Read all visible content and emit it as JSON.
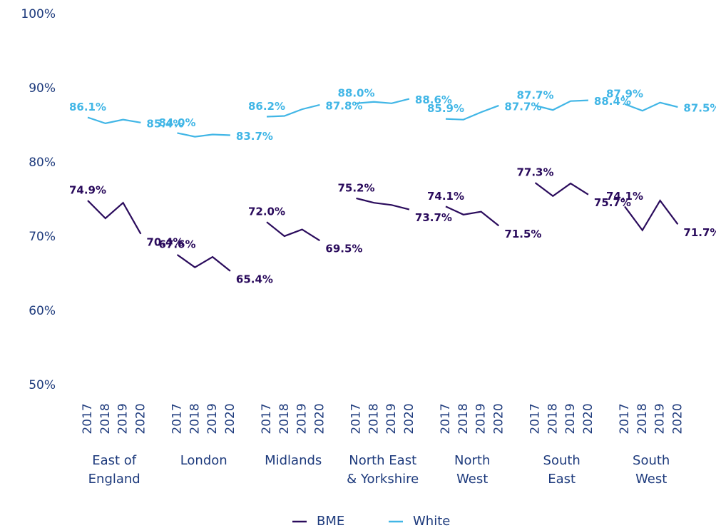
{
  "chart_data": {
    "type": "line",
    "groups": [
      {
        "label": [
          "East of",
          "England"
        ],
        "categories": [
          "2017",
          "2018",
          "2019",
          "2020"
        ]
      },
      {
        "label": [
          "London"
        ],
        "categories": [
          "2017",
          "2018",
          "2019",
          "2020"
        ]
      },
      {
        "label": [
          "Midlands"
        ],
        "categories": [
          "2017",
          "2018",
          "2019",
          "2020"
        ]
      },
      {
        "label": [
          "North East",
          "& Yorkshire"
        ],
        "categories": [
          "2017",
          "2018",
          "2019",
          "2020"
        ]
      },
      {
        "label": [
          "North",
          "West"
        ],
        "categories": [
          "2017",
          "2018",
          "2019",
          "2020"
        ]
      },
      {
        "label": [
          "South",
          "East"
        ],
        "categories": [
          "2017",
          "2018",
          "2019",
          "2020"
        ]
      },
      {
        "label": [
          "South",
          "West"
        ],
        "categories": [
          "2017",
          "2018",
          "2019",
          "2020"
        ]
      }
    ],
    "series": [
      {
        "name": "BME",
        "color": "#2a0b5c",
        "values": [
          [
            74.9,
            72.5,
            74.6,
            70.4
          ],
          [
            67.6,
            65.9,
            67.3,
            65.4
          ],
          [
            72.0,
            70.1,
            71.0,
            69.5
          ],
          [
            75.2,
            74.6,
            74.3,
            73.7
          ],
          [
            74.1,
            73.0,
            73.4,
            71.5
          ],
          [
            77.3,
            75.5,
            77.2,
            75.7
          ],
          [
            74.1,
            70.9,
            74.9,
            71.7
          ]
        ],
        "value_labels": [
          [
            "74.9%",
            null,
            null,
            "70.4%"
          ],
          [
            "67.6%",
            null,
            null,
            "65.4%"
          ],
          [
            "72.0%",
            null,
            null,
            "69.5%"
          ],
          [
            "75.2%",
            null,
            null,
            "73.7%"
          ],
          [
            "74.1%",
            null,
            null,
            "71.5%"
          ],
          [
            "77.3%",
            null,
            null,
            "75.7%"
          ],
          [
            "74.1%",
            null,
            null,
            "71.7%"
          ]
        ]
      },
      {
        "name": "White",
        "color": "#41b6e6",
        "values": [
          [
            86.1,
            85.3,
            85.8,
            85.4
          ],
          [
            84.0,
            83.5,
            83.8,
            83.7
          ],
          [
            86.2,
            86.3,
            87.2,
            87.8
          ],
          [
            88.0,
            88.2,
            88.0,
            88.6
          ],
          [
            85.9,
            85.8,
            86.8,
            87.7
          ],
          [
            87.7,
            87.1,
            88.3,
            88.4
          ],
          [
            87.9,
            87.0,
            88.1,
            87.5
          ]
        ],
        "value_labels": [
          [
            "86.1%",
            null,
            null,
            "85.4%"
          ],
          [
            "84.0%",
            null,
            null,
            "83.7%"
          ],
          [
            "86.2%",
            null,
            null,
            "87.8%"
          ],
          [
            "88.0%",
            null,
            null,
            "88.6%"
          ],
          [
            "85.9%",
            null,
            null,
            "87.7%"
          ],
          [
            "87.7%",
            null,
            null,
            "88.4%"
          ],
          [
            "87.9%",
            null,
            null,
            "87.5%"
          ]
        ]
      }
    ],
    "ylim": [
      50,
      100
    ],
    "yticks": [
      {
        "value": 50,
        "label": "50%"
      },
      {
        "value": 60,
        "label": "60%"
      },
      {
        "value": 70,
        "label": "70%"
      },
      {
        "value": 80,
        "label": "80%"
      },
      {
        "value": 90,
        "label": "90%"
      },
      {
        "value": 100,
        "label": "100%"
      }
    ],
    "grid": false
  }
}
